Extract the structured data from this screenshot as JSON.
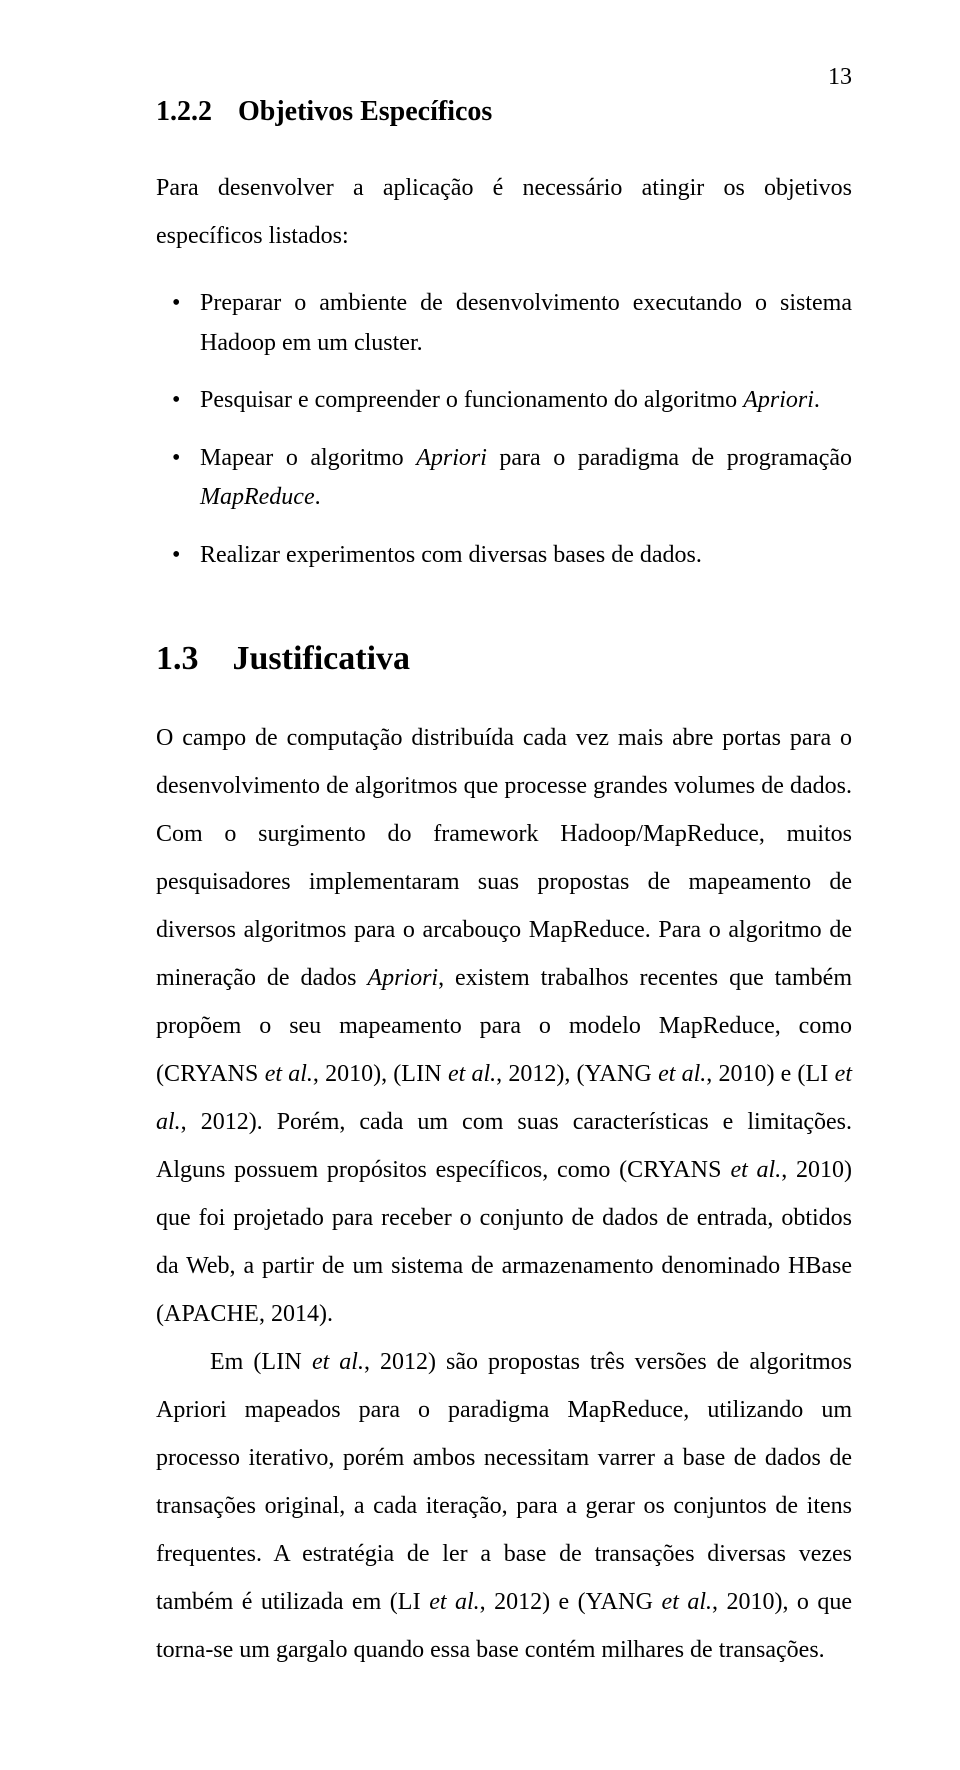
{
  "page_number": "13",
  "section1": {
    "number": "1.2.2",
    "title": "Objetivos Específicos",
    "intro": "Para desenvolver a aplicação é necessário atingir os objetivos específicos listados:",
    "bullets": [
      {
        "pre": "Preparar o ambiente de desenvolvimento executando o sistema Hadoop em um cluster."
      },
      {
        "pre": "Pesquisar e compreender o funcionamento do algoritmo ",
        "it1": "Apriori",
        "post1": "."
      },
      {
        "pre": "Mapear o algoritmo ",
        "it1": "Apriori",
        "mid": " para o paradigma de programação ",
        "it2": "MapReduce",
        "post2": "."
      },
      {
        "pre": "Realizar experimentos com diversas bases de dados."
      }
    ]
  },
  "section2": {
    "number": "1.3",
    "title": "Justificativa",
    "p1": {
      "t1": "O campo de computação distribuída cada vez mais abre portas para o desenvolvimento de algoritmos que processe grandes volumes de dados. Com o surgimento do framework Hadoop/MapReduce, muitos pesquisadores implementaram suas propostas de mapeamento de diversos algoritmos para o arcabouço MapReduce. Para o algoritmo de mineração de dados ",
      "it1": "Apriori",
      "t2": ", existem trabalhos recentes que também propõem o seu mapeamento para o modelo MapReduce, como (",
      "sc1": "CRYANS",
      "it2": " et al.",
      "t3": ", 2010), (",
      "sc2": "LIN",
      "it3": " et al.",
      "t4": ", 2012), (",
      "sc3": "YANG",
      "it4": " et al.",
      "t5": ", 2010) e (",
      "sc4": "LI",
      "it5": " et al.",
      "t6": ", 2012). Porém, cada um com suas características e limitações. Alguns possuem propósitos específicos, como (",
      "sc5": "CRYANS",
      "it6": " et al.",
      "t7": ", 2010) que foi projetado para receber o conjunto de dados de entrada, obtidos da Web, a partir de um sistema de armazenamento denominado HBase (",
      "sc6": "APACHE",
      "t8": ", 2014)."
    },
    "p2": {
      "t1": "Em (",
      "sc1": "LIN",
      "it1": " et al.",
      "t2": ", 2012) são propostas três versões de algoritmos Apriori mapeados para o paradigma MapReduce, utilizando um processo iterativo, porém ambos necessitam varrer a base de dados de transações original, a cada iteração, para a gerar os conjuntos de itens frequentes. A estratégia de ler a base de transações diversas vezes também é utilizada em (",
      "sc2": "LI",
      "it2": " et al.",
      "t3": ", 2012) e (",
      "sc3": "YANG",
      "it3": " et al.",
      "t4": ", 2010), o que torna-se um gargalo quando essa base contém milhares de transações."
    }
  }
}
